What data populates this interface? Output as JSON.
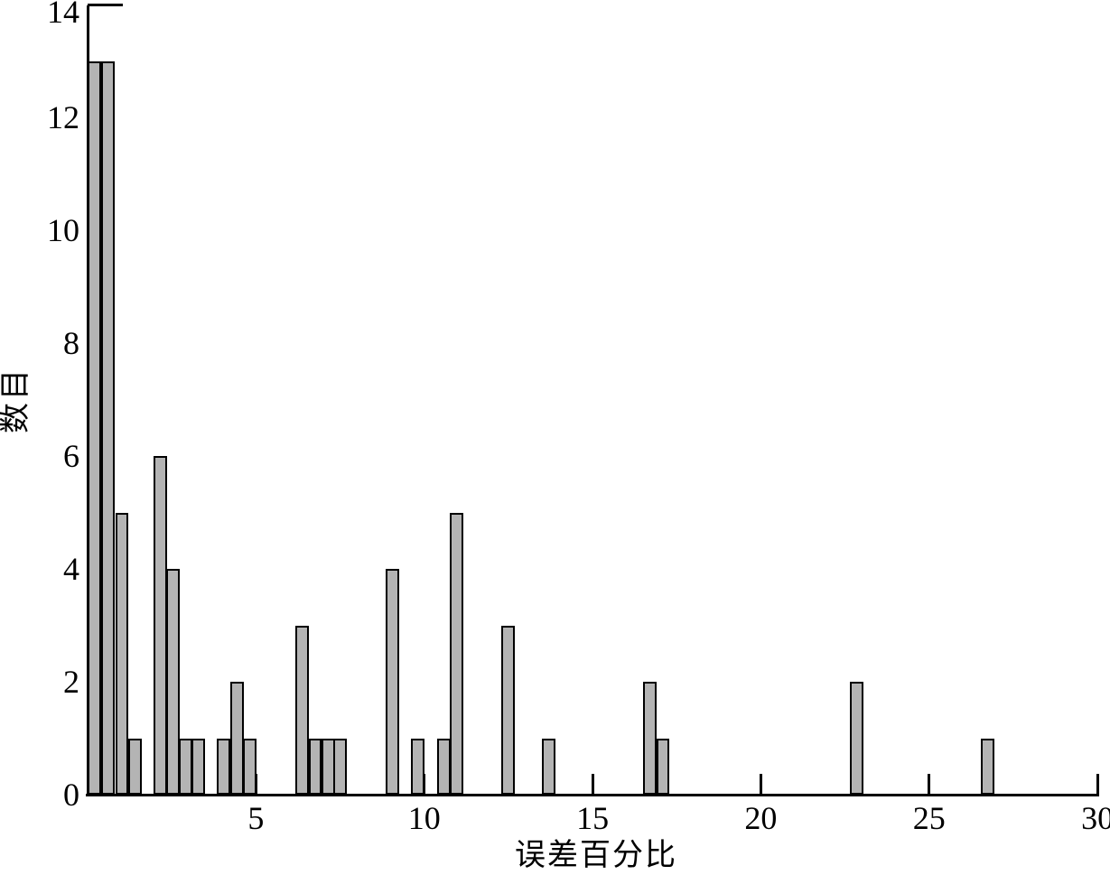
{
  "figure": {
    "background": "#ffffff",
    "text_color": "#000000"
  },
  "chart_data": {
    "type": "bar",
    "chart_kind": "histogram",
    "title": "",
    "xlabel": "误差百分比",
    "ylabel": "数目",
    "xlim": [
      0,
      30
    ],
    "ylim": [
      0,
      14
    ],
    "x_ticks": [
      5,
      10,
      15,
      20,
      25,
      30
    ],
    "y_ticks": [
      0,
      2,
      4,
      6,
      8,
      10,
      12,
      14
    ],
    "grid": false,
    "legend": false,
    "bar_width": 0.4,
    "colors": {
      "bar_fill": "#b4b4b4",
      "bar_edge": "#000000",
      "axis": "#000000"
    },
    "bars": [
      {
        "x": 0.0,
        "count": 13
      },
      {
        "x": 0.41,
        "count": 13
      },
      {
        "x": 0.82,
        "count": 5
      },
      {
        "x": 1.21,
        "count": 1
      },
      {
        "x": 1.96,
        "count": 6
      },
      {
        "x": 2.34,
        "count": 4
      },
      {
        "x": 2.72,
        "count": 1
      },
      {
        "x": 3.09,
        "count": 1
      },
      {
        "x": 3.84,
        "count": 1
      },
      {
        "x": 4.23,
        "count": 2
      },
      {
        "x": 4.61,
        "count": 1
      },
      {
        "x": 6.17,
        "count": 3
      },
      {
        "x": 6.56,
        "count": 1
      },
      {
        "x": 6.94,
        "count": 1
      },
      {
        "x": 7.31,
        "count": 1
      },
      {
        "x": 8.86,
        "count": 4
      },
      {
        "x": 9.61,
        "count": 1
      },
      {
        "x": 10.38,
        "count": 1
      },
      {
        "x": 10.77,
        "count": 5
      },
      {
        "x": 12.29,
        "count": 3
      },
      {
        "x": 13.5,
        "count": 1
      },
      {
        "x": 16.5,
        "count": 2
      },
      {
        "x": 16.89,
        "count": 1
      },
      {
        "x": 22.65,
        "count": 2
      },
      {
        "x": 26.54,
        "count": 1
      }
    ]
  }
}
